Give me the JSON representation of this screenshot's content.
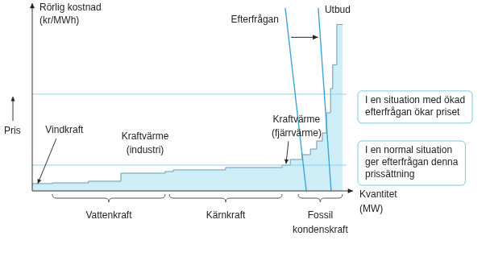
{
  "chart_data": {
    "type": "line",
    "y_label": [
      "Rörlig kostnad",
      "(kr/MWh)"
    ],
    "y_side_label": "Pris",
    "x_label": [
      "Kvantitet",
      "(MW)"
    ],
    "xlim": [
      0,
      100
    ],
    "ylim": [
      0,
      100
    ],
    "tick_labels": false,
    "grid": false,
    "series": [
      {
        "name": "Utbud",
        "type": "step",
        "color": "#cdeef7",
        "x": [
          0,
          6.4,
          17.9,
          28.2,
          42.3,
          44.9,
          61.5,
          79.5,
          82.1,
          85.9,
          88.5,
          90.5,
          92.3,
          93.6,
          94.9,
          95.6,
          96.9,
          97.7,
          98.7
        ],
        "values": [
          2.6,
          4.0,
          4.4,
          5.3,
          9.7,
          10.6,
          11.5,
          12.8,
          14.1,
          17.2,
          19.8,
          22.9,
          27.3,
          31.7,
          42.7,
          56,
          69,
          91,
          91
        ]
      },
      {
        "name": "Efterfrågan",
        "type": "line",
        "color": "#3aa6d6",
        "x": [
          80.5,
          87.2,
          89,
          91.0,
          95.1
        ],
        "values": [
          100,
          0,
          null,
          100,
          0
        ]
      }
    ],
    "price_levels": [
      {
        "y": 52.9,
        "text": [
          "I en situation med ökad",
          "efterfrågan ökar priset"
        ]
      },
      {
        "y": 14.1,
        "text": [
          "I en normal situation",
          "ger efterfrågan denna",
          "prissättning"
        ]
      }
    ],
    "point_labels": [
      {
        "text": [
          "Vindkraft"
        ],
        "x": 1.5,
        "y": 2.6
      },
      {
        "text": [
          "Kraftvärme",
          "(industri)"
        ],
        "x": 42.3,
        "y": 9.7
      },
      {
        "text": [
          "Kraftvärme",
          "(fjärrvärme)"
        ],
        "x": 80.5,
        "y": 13.5
      }
    ],
    "region_labels": [
      {
        "text": [
          "Vattenkraft"
        ],
        "x_from": 6.4,
        "x_to": 42.3
      },
      {
        "text": [
          "Kärnkraft"
        ],
        "x_from": 43.6,
        "x_to": 79.5
      },
      {
        "text": [
          "Fossil",
          "kondenskraft"
        ],
        "x_from": 84.6,
        "x_to": 98.7
      }
    ]
  }
}
